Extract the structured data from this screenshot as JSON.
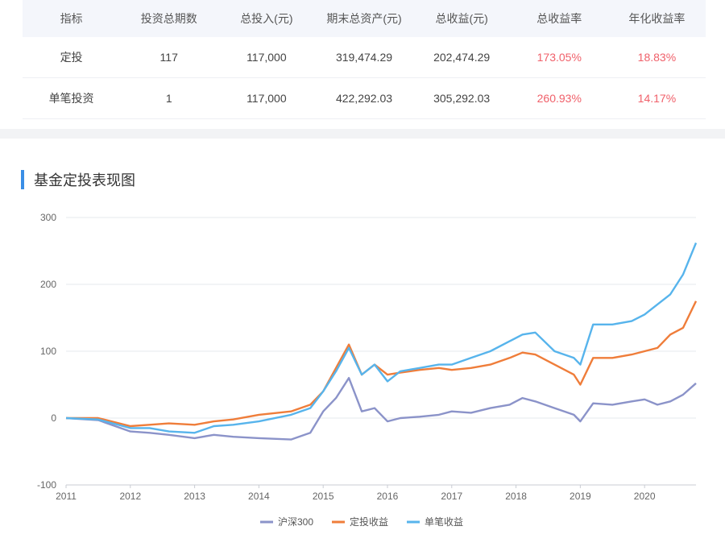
{
  "table": {
    "headers": [
      "指标",
      "投资总期数",
      "总投入(元)",
      "期末总资产(元)",
      "总收益(元)",
      "总收益率",
      "年化收益率"
    ],
    "rows": [
      [
        "定投",
        "117",
        "117,000",
        "319,474.29",
        "202,474.29",
        "173.05%",
        "18.83%"
      ],
      [
        "单笔投资",
        "1",
        "117,000",
        "422,292.03",
        "305,292.03",
        "260.93%",
        "14.17%"
      ]
    ]
  },
  "section": {
    "title": "基金定投表现图"
  },
  "chart_data": {
    "type": "line",
    "title": "基金定投表现图",
    "xlabel": "",
    "ylabel": "",
    "ylim": [
      -100,
      300
    ],
    "yticks": [
      -100,
      0,
      100,
      200,
      300
    ],
    "xlim": [
      2011,
      2020.8
    ],
    "xticks": [
      "2011",
      "2012",
      "2013",
      "2014",
      "2015",
      "2016",
      "2017",
      "2018",
      "2019",
      "2020"
    ],
    "grid": true,
    "legend_position": "bottom",
    "colors": {
      "hs300": "#8b93c9",
      "dca": "#ef7d3a",
      "lump": "#57b4ec"
    },
    "x": [
      2011.0,
      2011.5,
      2012.0,
      2012.3,
      2012.6,
      2013.0,
      2013.3,
      2013.6,
      2014.0,
      2014.5,
      2014.8,
      2015.0,
      2015.2,
      2015.4,
      2015.6,
      2015.8,
      2016.0,
      2016.2,
      2016.5,
      2016.8,
      2017.0,
      2017.3,
      2017.6,
      2017.9,
      2018.1,
      2018.3,
      2018.6,
      2018.9,
      2019.0,
      2019.2,
      2019.5,
      2019.8,
      2020.0,
      2020.2,
      2020.4,
      2020.6,
      2020.8
    ],
    "series": [
      {
        "name": "沪深300",
        "key": "hs300",
        "values": [
          0,
          -3,
          -20,
          -22,
          -25,
          -30,
          -25,
          -28,
          -30,
          -32,
          -22,
          10,
          30,
          60,
          10,
          15,
          -5,
          0,
          2,
          5,
          10,
          8,
          15,
          20,
          30,
          25,
          15,
          5,
          -5,
          22,
          20,
          25,
          28,
          20,
          25,
          35,
          52
        ]
      },
      {
        "name": "定投收益",
        "key": "dca",
        "values": [
          0,
          0,
          -12,
          -10,
          -8,
          -10,
          -5,
          -2,
          5,
          10,
          20,
          40,
          75,
          110,
          65,
          80,
          65,
          68,
          72,
          75,
          72,
          75,
          80,
          90,
          98,
          95,
          80,
          65,
          50,
          90,
          90,
          95,
          100,
          105,
          125,
          135,
          175
        ]
      },
      {
        "name": "单笔收益",
        "key": "lump",
        "values": [
          0,
          -2,
          -15,
          -15,
          -20,
          -22,
          -12,
          -10,
          -5,
          5,
          15,
          40,
          70,
          105,
          65,
          80,
          55,
          70,
          75,
          80,
          80,
          90,
          100,
          115,
          125,
          128,
          100,
          90,
          80,
          140,
          140,
          145,
          155,
          170,
          185,
          215,
          262
        ]
      }
    ]
  }
}
